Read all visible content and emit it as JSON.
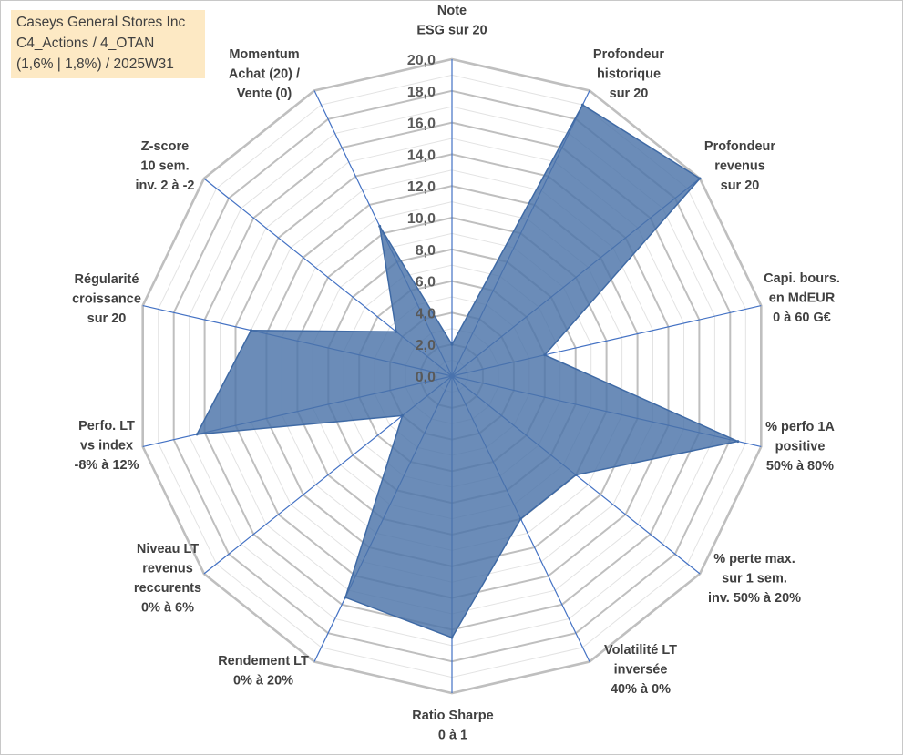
{
  "title_lines": [
    "Caseys General Stores Inc",
    "C4_Actions / 4_OTAN",
    "(1,6% | 1,8%) / 2025W31"
  ],
  "chart_data": {
    "type": "radar",
    "title": "Caseys General Stores Inc C4_Actions / 4_OTAN (1,6% | 1,8%) / 2025W31",
    "r_range": [
      0,
      20
    ],
    "r_ticks": [
      "0,0",
      "2,0",
      "4,0",
      "6,0",
      "8,0",
      "10,0",
      "12,0",
      "14,0",
      "16,0",
      "18,0",
      "20,0"
    ],
    "grid": true,
    "legend": "none",
    "series_color": "#4a73a8",
    "axes": [
      [
        "Note",
        "ESG sur 20"
      ],
      [
        "Profondeur",
        "historique",
        "sur 20"
      ],
      [
        "Profondeur",
        "revenus",
        "sur 20"
      ],
      [
        "Capi. bours.",
        "en MdEUR",
        "0 à 60 G€"
      ],
      [
        "% perfo 1A",
        "positive",
        "50% à 80%"
      ],
      [
        "% perte max.",
        "sur 1 sem.",
        "inv. 50% à 20%"
      ],
      [
        "Volatilité LT",
        "inversée",
        "40% à 0%"
      ],
      [
        "Ratio Sharpe",
        "0 à 1"
      ],
      [
        "Rendement LT",
        "0% à 20%"
      ],
      [
        "Niveau LT",
        "revenus",
        "reccurents",
        "0% à 6%"
      ],
      [
        "Perfo. LT",
        "vs index",
        "-8% à 12%"
      ],
      [
        "Régularité",
        "croissance",
        "sur 20"
      ],
      [
        "Z-score",
        "10 sem.",
        "inv. 2 à -2"
      ],
      [
        "Momentum",
        "Achat (20) /",
        "Vente (0)"
      ]
    ],
    "values": [
      2.0,
      19.0,
      20.0,
      6.0,
      18.5,
      10.0,
      10.0,
      16.5,
      15.5,
      4.0,
      16.5,
      13.0,
      4.5,
      10.5
    ]
  }
}
